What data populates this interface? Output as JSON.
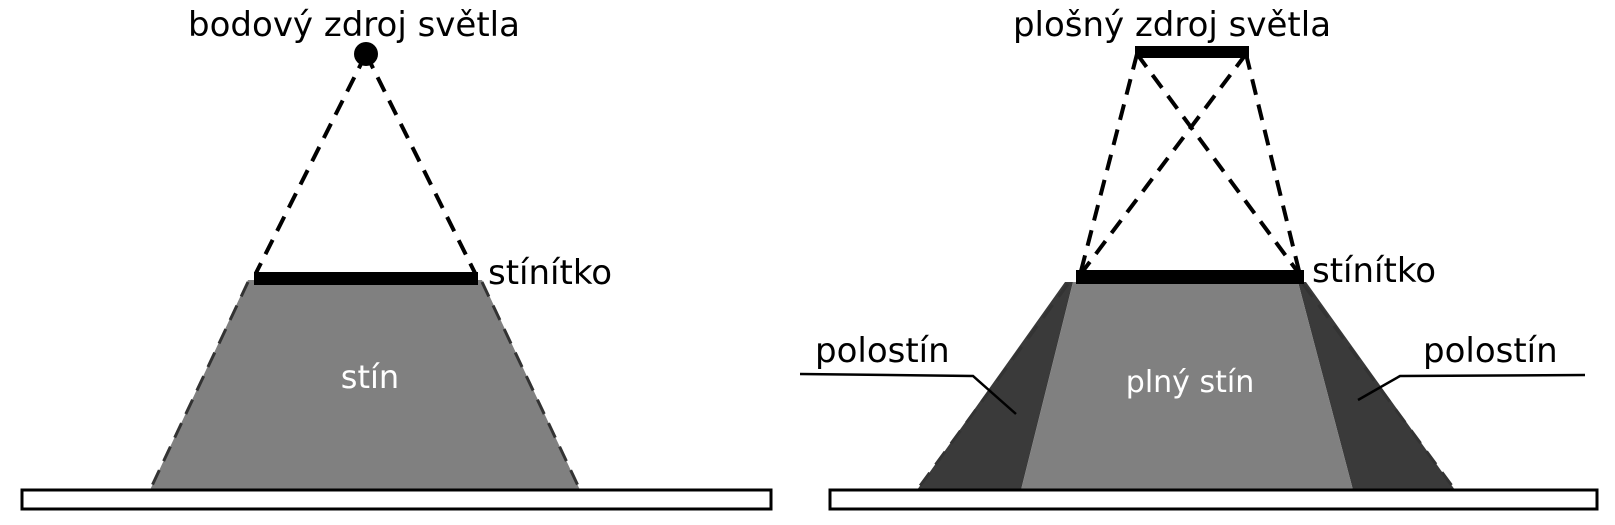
{
  "colors": {
    "umbra": "#808080",
    "penumbra": "#3a3a3a",
    "screen": "#000000",
    "ground_fill": "#ffffff",
    "ground_stroke": "#000000",
    "label_on_light": "#000000",
    "label_on_shadow": "#ffffff"
  },
  "left_panel": {
    "source_label": "bodový zdroj světla",
    "screen_label": "stínítko",
    "shadow_label": "stín"
  },
  "right_panel": {
    "source_label": "plošný zdroj světla",
    "screen_label": "stínítko",
    "umbra_label": "plný stín",
    "penumbra_left_label": "polostín",
    "penumbra_right_label": "polostín"
  }
}
